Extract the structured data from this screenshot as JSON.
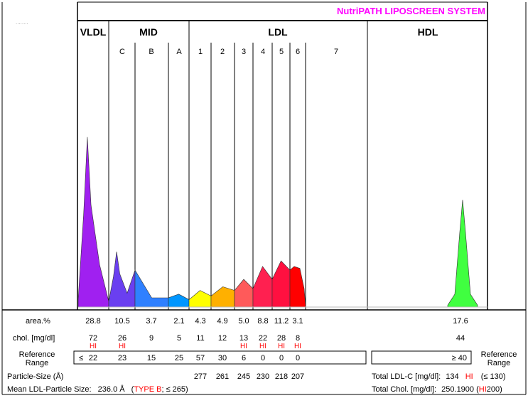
{
  "chart_data": {
    "type": "area",
    "title": "NutriPATH LIPOSCREEN  SYSTEM",
    "corner_text": "........",
    "groups": [
      "VLDL",
      "MID",
      "LDL",
      "HDL"
    ],
    "subfractions": [
      "C",
      "B",
      "A",
      "1",
      "2",
      "3",
      "4",
      "5",
      "6",
      "7"
    ],
    "bands": [
      {
        "name": "VLDL",
        "color": "#a020f0",
        "peak": 0.92
      },
      {
        "name": "MID-C",
        "color": "#6a3ff0",
        "peak": 0.3
      },
      {
        "name": "MID-B",
        "color": "#2f80ff",
        "peak": 0.05
      },
      {
        "name": "MID-A",
        "color": "#0096ff",
        "peak": 0.07
      },
      {
        "name": "LDL-1",
        "color": "#ffff00",
        "peak": 0.09
      },
      {
        "name": "LDL-2",
        "color": "#ffb000",
        "peak": 0.11
      },
      {
        "name": "LDL-3",
        "color": "#ff5a5a",
        "peak": 0.15
      },
      {
        "name": "LDL-4",
        "color": "#ff2050",
        "peak": 0.22
      },
      {
        "name": "LDL-5",
        "color": "#ff1040",
        "peak": 0.25
      },
      {
        "name": "LDL-6",
        "color": "#ff0000",
        "peak": 0.22
      },
      {
        "name": "HDL",
        "color": "#40ff40",
        "peak": 0.58
      }
    ],
    "rows": {
      "area_label": "area.%",
      "area": [
        "28.8",
        "10.5",
        "3.7",
        "2.1",
        "4.3",
        "4.9",
        "5.0",
        "8.8",
        "11.2",
        "3.1",
        "17.6"
      ],
      "chol_label": "chol. [mg/dl]",
      "chol": [
        "72",
        "26",
        "9",
        "5",
        "11",
        "12",
        "13",
        "22",
        "28",
        "8",
        "44"
      ],
      "chol_flag": [
        "HI",
        "HI",
        "",
        "",
        "",
        "",
        "HI",
        "HI",
        "HI",
        "HI",
        ""
      ],
      "ref_label_1": "Reference",
      "ref_label_2": "Range",
      "ref_vldl_sign": "≤",
      "ref": [
        "22",
        "23",
        "15",
        "25",
        "57",
        "30",
        "6",
        "0",
        "0",
        "0"
      ],
      "ref_hdl": "≥ 40",
      "particle_label": "Particle-Size (Å)",
      "particle": [
        "277",
        "261",
        "245",
        "230",
        "218",
        "207"
      ],
      "mean_label": "Mean LDL-Particle Size:",
      "mean_value": "236.0 Å",
      "mean_type": "TYPE B",
      "mean_ref": "≤ 265",
      "total_ldl_label": "Total LDL-C [mg/dl]:",
      "total_ldl_value": "134",
      "total_ldl_flag": "HI",
      "total_ldl_ref": "≤ 130",
      "total_chol_label": "Total Chol. [mg/dl]:",
      "total_chol_value": "250.1900",
      "total_chol_flag": "HI",
      "total_chol_ref": "200"
    }
  }
}
